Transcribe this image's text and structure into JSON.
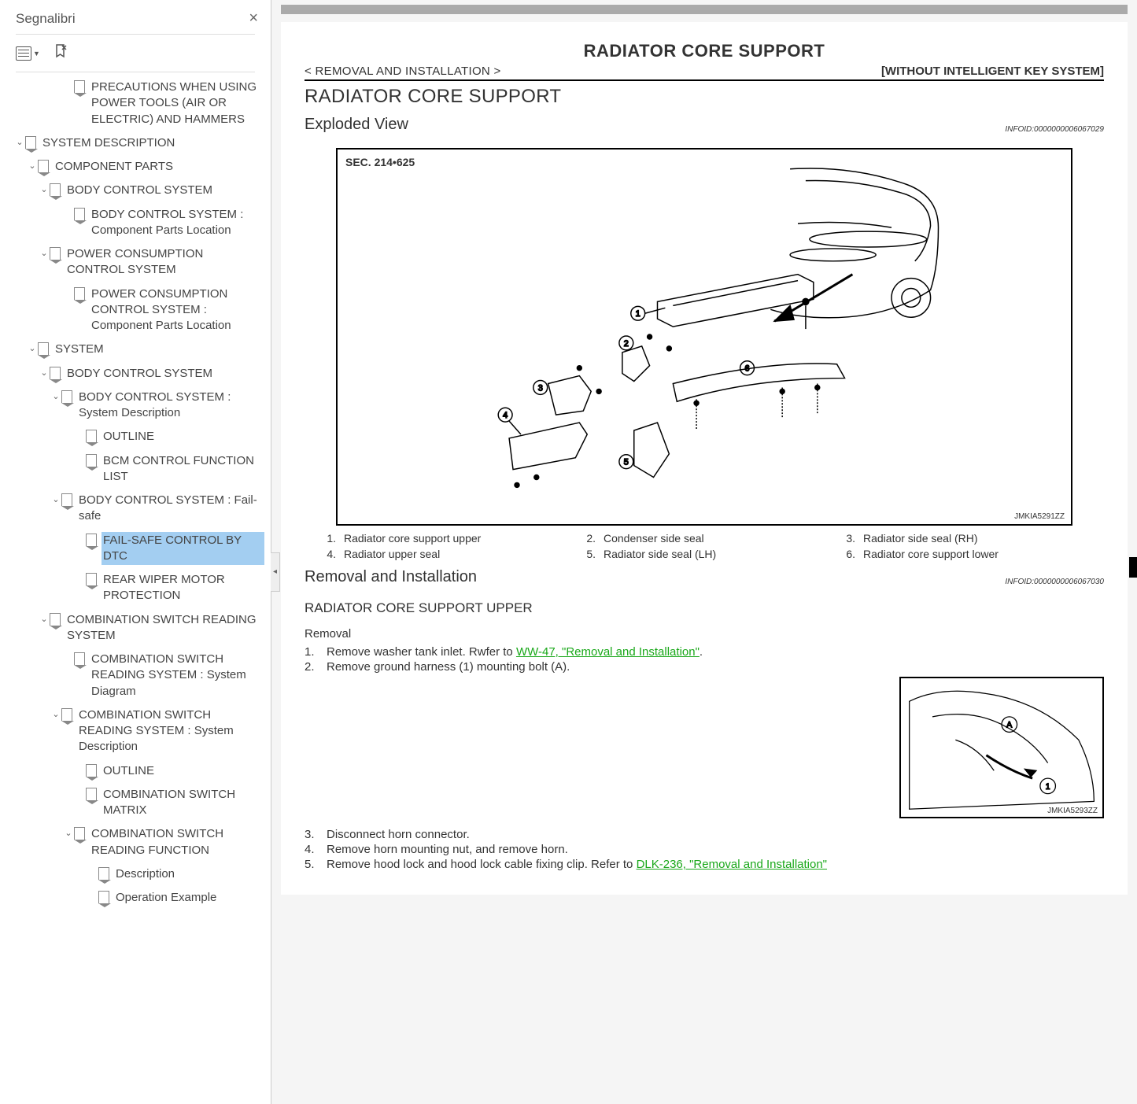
{
  "sidebar": {
    "title": "Segnalibri",
    "items": [
      {
        "indent": 128,
        "chev": "",
        "label": "PRECAUTIONS WHEN USING POWER TOOLS (AIR OR ELECTRIC) AND HAMMERS"
      },
      {
        "indent": 66,
        "chev": "v",
        "label": "SYSTEM DESCRIPTION"
      },
      {
        "indent": 82,
        "chev": "v",
        "label": "COMPONENT PARTS"
      },
      {
        "indent": 97,
        "chev": "v",
        "label": "BODY CONTROL SYSTEM"
      },
      {
        "indent": 128,
        "chev": "",
        "label": "BODY CONTROL SYSTEM : Component Parts Location"
      },
      {
        "indent": 97,
        "chev": "v",
        "label": "POWER CONSUMPTION CONTROL SYSTEM"
      },
      {
        "indent": 128,
        "chev": "",
        "label": "POWER CONSUMPTION CONTROL SYSTEM : Component Parts Location"
      },
      {
        "indent": 82,
        "chev": "v",
        "label": "SYSTEM"
      },
      {
        "indent": 97,
        "chev": "v",
        "label": "BODY CONTROL SYSTEM"
      },
      {
        "indent": 112,
        "chev": "v",
        "label": "BODY CONTROL SYSTEM : System Description"
      },
      {
        "indent": 143,
        "chev": "",
        "label": "OUTLINE"
      },
      {
        "indent": 143,
        "chev": "",
        "label": "BCM CONTROL FUNCTION LIST"
      },
      {
        "indent": 112,
        "chev": "v",
        "label": "BODY CONTROL SYSTEM : Fail-safe"
      },
      {
        "indent": 143,
        "chev": "",
        "label": "FAIL-SAFE CONTROL BY DTC",
        "selected": true
      },
      {
        "indent": 143,
        "chev": "",
        "label": "REAR WIPER MOTOR PROTECTION"
      },
      {
        "indent": 97,
        "chev": "v",
        "label": "COMBINATION SWITCH READING SYSTEM"
      },
      {
        "indent": 128,
        "chev": "",
        "label": "COMBINATION SWITCH READING SYSTEM : System Diagram"
      },
      {
        "indent": 112,
        "chev": "v",
        "label": "COMBINATION SWITCH READING SYSTEM : System Description"
      },
      {
        "indent": 143,
        "chev": "",
        "label": "OUTLINE"
      },
      {
        "indent": 143,
        "chev": "",
        "label": "COMBINATION SWITCH MATRIX"
      },
      {
        "indent": 128,
        "chev": "v",
        "label": "COMBINATION SWITCH READING FUNCTION"
      },
      {
        "indent": 159,
        "chev": "",
        "label": "Description"
      },
      {
        "indent": 159,
        "chev": "",
        "label": "Operation Example"
      }
    ]
  },
  "doc": {
    "mainTitle": "RADIATOR CORE SUPPORT",
    "breadcrumb": "< REMOVAL AND INSTALLATION >",
    "labelRight": "[WITHOUT INTELLIGENT KEY SYSTEM]",
    "sectionTitle": "RADIATOR CORE SUPPORT",
    "explodedView": "Exploded View",
    "infoid1": "INFOID:0000000006067029",
    "secLabel": "SEC. 214•625",
    "diagCode1": "JMKIA5291ZZ",
    "parts": [
      {
        "n": "1.",
        "t": "Radiator core support upper"
      },
      {
        "n": "2.",
        "t": "Condenser side seal"
      },
      {
        "n": "3.",
        "t": "Radiator side seal (RH)"
      },
      {
        "n": "4.",
        "t": "Radiator upper seal"
      },
      {
        "n": "5.",
        "t": "Radiator side seal (LH)"
      },
      {
        "n": "6.",
        "t": "Radiator core support lower"
      }
    ],
    "removalInstall": "Removal and Installation",
    "infoid2": "INFOID:0000000006067030",
    "upperTitle": "RADIATOR CORE SUPPORT UPPER",
    "removal": "Removal",
    "step1a": "Remove washer tank inlet. Rwfer to ",
    "step1link": "WW-47, \"Removal and Installation\"",
    "step1b": ".",
    "step2": "Remove ground harness (1) mounting bolt (A).",
    "diagCode2": "JMKIA5293ZZ",
    "step3": "Disconnect horn connector.",
    "step4": "Remove horn mounting nut, and remove horn.",
    "step5a": "Remove hood lock and hood lock cable fixing clip. Refer to ",
    "step5link": "DLK-236, \"Removal and Installation\""
  }
}
